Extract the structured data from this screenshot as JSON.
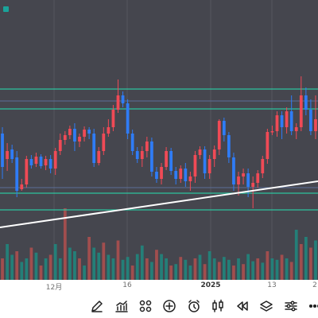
{
  "chart_data": {
    "type": "candlestick",
    "colors": {
      "up": "#f04a56",
      "down": "#2f7cf6",
      "vol_up": "#b2504f",
      "vol_down": "#1e8a80",
      "level": "#2cc49f",
      "trend": "#ffffff",
      "background": "#45464e"
    },
    "levels": [
      112,
      137,
      243,
      264
    ],
    "candles": [
      [
        168,
        210,
        160,
        225
      ],
      [
        200,
        190,
        180,
        215
      ],
      [
        188,
        200,
        182,
        205
      ],
      [
        198,
        240,
        190,
        248
      ],
      [
        238,
        232,
        225,
        240
      ],
      [
        232,
        200,
        196,
        236
      ],
      [
        200,
        208,
        195,
        212
      ],
      [
        206,
        197,
        192,
        210
      ],
      [
        197,
        209,
        194,
        212
      ],
      [
        208,
        200,
        196,
        214
      ],
      [
        200,
        212,
        195,
        218
      ],
      [
        212,
        190,
        186,
        220
      ],
      [
        190,
        176,
        168,
        195
      ],
      [
        176,
        170,
        165,
        182
      ],
      [
        170,
        162,
        158,
        175
      ],
      [
        162,
        178,
        155,
        190
      ],
      [
        178,
        172,
        168,
        185
      ],
      [
        172,
        163,
        159,
        178
      ],
      [
        163,
        168,
        160,
        175
      ],
      [
        168,
        205,
        162,
        210
      ],
      [
        205,
        190,
        185,
        208
      ],
      [
        190,
        168,
        160,
        195
      ],
      [
        168,
        160,
        150,
        172
      ],
      [
        160,
        138,
        132,
        165
      ],
      [
        138,
        120,
        100,
        142
      ],
      [
        120,
        130,
        115,
        135
      ],
      [
        130,
        168,
        125,
        175
      ],
      [
        168,
        190,
        163,
        195
      ],
      [
        190,
        200,
        185,
        205
      ],
      [
        200,
        190,
        184,
        210
      ],
      [
        190,
        178,
        172,
        198
      ],
      [
        178,
        216,
        173,
        222
      ],
      [
        216,
        225,
        210,
        230
      ],
      [
        225,
        210,
        205,
        232
      ],
      [
        210,
        190,
        185,
        214
      ],
      [
        190,
        215,
        186,
        220
      ],
      [
        215,
        225,
        210,
        232
      ],
      [
        225,
        212,
        208,
        230
      ],
      [
        212,
        228,
        205,
        235
      ],
      [
        228,
        222,
        216,
        240
      ],
      [
        222,
        195,
        190,
        230
      ],
      [
        195,
        188,
        184,
        200
      ],
      [
        188,
        218,
        184,
        225
      ],
      [
        218,
        200,
        195,
        225
      ],
      [
        200,
        188,
        183,
        210
      ],
      [
        188,
        152,
        150,
        195
      ],
      [
        152,
        170,
        148,
        178
      ],
      [
        170,
        198,
        166,
        205
      ],
      [
        198,
        232,
        192,
        240
      ],
      [
        232,
        222,
        216,
        246
      ],
      [
        222,
        218,
        212,
        232
      ],
      [
        218,
        235,
        212,
        248
      ],
      [
        235,
        230,
        222,
        262
      ],
      [
        230,
        218,
        214,
        236
      ],
      [
        218,
        200,
        196,
        224
      ],
      [
        200,
        166,
        162,
        206
      ],
      [
        166,
        165,
        158,
        170
      ],
      [
        165,
        145,
        140,
        172
      ],
      [
        145,
        160,
        140,
        175
      ],
      [
        160,
        140,
        135,
        168
      ],
      [
        140,
        165,
        120,
        170
      ],
      [
        165,
        160,
        155,
        175
      ],
      [
        160,
        120,
        96,
        165
      ],
      [
        120,
        138,
        110,
        145
      ],
      [
        138,
        165,
        125,
        170
      ],
      [
        165,
        150,
        120,
        175
      ]
    ],
    "volumes": [
      [
        0.3,
        0
      ],
      [
        0.5,
        1
      ],
      [
        0.35,
        1
      ],
      [
        0.4,
        0
      ],
      [
        0.25,
        1
      ],
      [
        0.3,
        1
      ],
      [
        0.45,
        0
      ],
      [
        0.38,
        1
      ],
      [
        0.2,
        0
      ],
      [
        0.3,
        1
      ],
      [
        0.35,
        0
      ],
      [
        0.5,
        1
      ],
      [
        0.3,
        1
      ],
      [
        1.0,
        0
      ],
      [
        0.45,
        1
      ],
      [
        0.4,
        1
      ],
      [
        0.3,
        0
      ],
      [
        0.2,
        1
      ],
      [
        0.6,
        0
      ],
      [
        0.45,
        1
      ],
      [
        0.38,
        1
      ],
      [
        0.52,
        0
      ],
      [
        0.35,
        1
      ],
      [
        0.3,
        1
      ],
      [
        0.55,
        0
      ],
      [
        0.28,
        1
      ],
      [
        0.32,
        1
      ],
      [
        0.2,
        0
      ],
      [
        0.36,
        1
      ],
      [
        0.48,
        1
      ],
      [
        0.3,
        0
      ],
      [
        0.25,
        1
      ],
      [
        0.42,
        0
      ],
      [
        0.36,
        1
      ],
      [
        0.3,
        1
      ],
      [
        0.2,
        0
      ],
      [
        0.22,
        1
      ],
      [
        0.32,
        0
      ],
      [
        0.28,
        1
      ],
      [
        0.2,
        1
      ],
      [
        0.3,
        0
      ],
      [
        0.35,
        1
      ],
      [
        0.22,
        0
      ],
      [
        0.4,
        1
      ],
      [
        0.3,
        1
      ],
      [
        0.25,
        0
      ],
      [
        0.32,
        1
      ],
      [
        0.28,
        1
      ],
      [
        0.2,
        0
      ],
      [
        0.3,
        1
      ],
      [
        0.22,
        0
      ],
      [
        0.36,
        1
      ],
      [
        0.26,
        1
      ],
      [
        0.3,
        0
      ],
      [
        0.24,
        1
      ],
      [
        0.4,
        0
      ],
      [
        0.3,
        1
      ],
      [
        0.28,
        1
      ],
      [
        0.35,
        0
      ],
      [
        0.3,
        1
      ],
      [
        0.25,
        0
      ],
      [
        0.7,
        1
      ],
      [
        0.5,
        0
      ],
      [
        0.6,
        1
      ],
      [
        0.45,
        0
      ],
      [
        0.55,
        1
      ]
    ],
    "x_ticks": [
      "12月",
      "16",
      "2025",
      "13",
      "2"
    ]
  },
  "toolbar": {
    "tools": [
      "pencil-icon",
      "indicator-chart-icon",
      "grid-icon",
      "add-icon",
      "alarm-clock-icon",
      "candlestick-icon",
      "rewind-icon",
      "layers-icon",
      "settings-sliders-icon",
      "more-icon"
    ]
  }
}
